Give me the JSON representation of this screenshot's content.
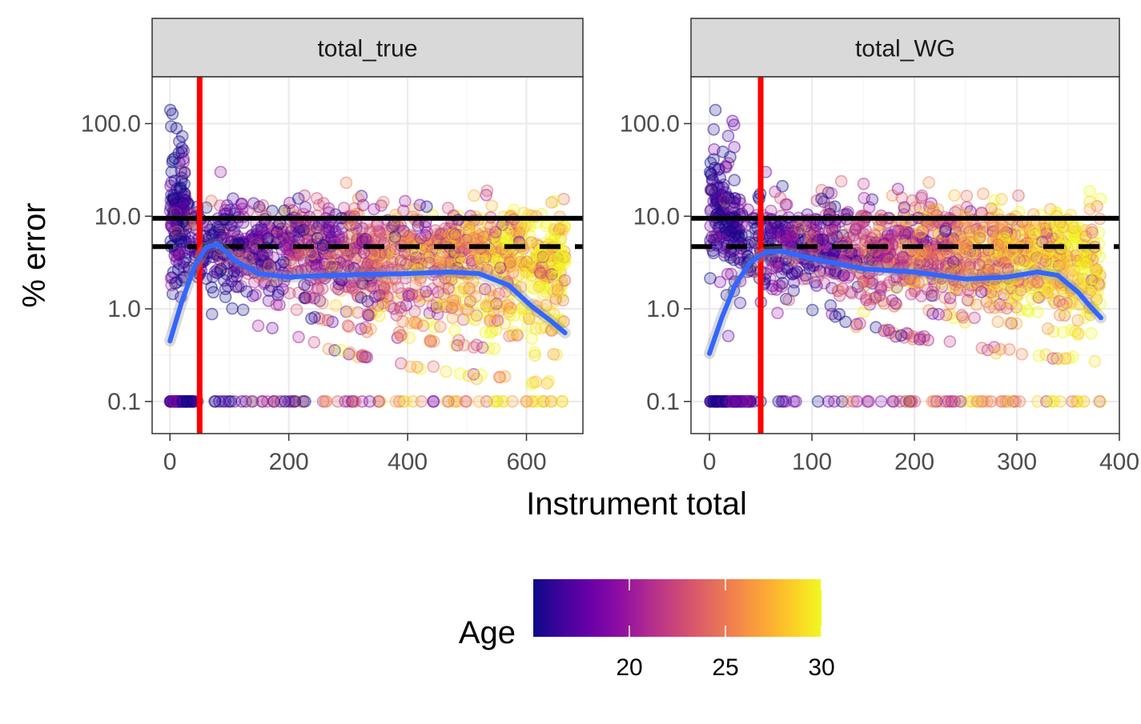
{
  "chart_data": {
    "type": "scatter",
    "x_axis_title": "Instrument total",
    "y_axis_title": "% error",
    "y_scale": "log10",
    "y_ticks": [
      0.1,
      1.0,
      10.0,
      100.0
    ],
    "y_tick_labels": [
      "0.1",
      "1.0",
      "10.0",
      "100.0"
    ],
    "ylim": [
      0.045,
      320
    ],
    "hlines": [
      {
        "y": 9.5,
        "style": "solid",
        "color": "#000000"
      },
      {
        "y": 4.7,
        "style": "dashed",
        "color": "#000000"
      }
    ],
    "vline": {
      "x": 50,
      "color": "#ff0000"
    },
    "smooth_color": "#3366ff",
    "grid": true,
    "legend": {
      "title": "Age",
      "placement": "bottom",
      "range": [
        15,
        30
      ],
      "ticks": [
        20,
        25,
        30
      ],
      "tick_labels": [
        "20",
        "25",
        "30"
      ],
      "palette": "plasma"
    },
    "panels": [
      {
        "strip": "total_true",
        "xlim": [
          -30,
          695
        ],
        "x_ticks": [
          0,
          200,
          400,
          600
        ],
        "x_tick_labels": [
          "0",
          "200",
          "400",
          "600"
        ],
        "x_max": 665,
        "smooth": [
          [
            0,
            0.45
          ],
          [
            20,
            1.2
          ],
          [
            40,
            2.7
          ],
          [
            60,
            4.6
          ],
          [
            80,
            5.0
          ],
          [
            110,
            3.3
          ],
          [
            150,
            2.4
          ],
          [
            200,
            2.2
          ],
          [
            260,
            2.3
          ],
          [
            330,
            2.35
          ],
          [
            400,
            2.4
          ],
          [
            470,
            2.5
          ],
          [
            520,
            2.4
          ],
          [
            570,
            1.8
          ],
          [
            610,
            1.05
          ],
          [
            640,
            0.75
          ],
          [
            665,
            0.55
          ]
        ]
      },
      {
        "strip": "total_WG",
        "xlim": [
          -18,
          400
        ],
        "x_ticks": [
          0,
          100,
          200,
          300,
          400
        ],
        "x_tick_labels": [
          "0",
          "100",
          "200",
          "300",
          "400"
        ],
        "x_max": 382,
        "smooth": [
          [
            0,
            0.33
          ],
          [
            12,
            0.8
          ],
          [
            25,
            1.8
          ],
          [
            40,
            3.2
          ],
          [
            55,
            4.1
          ],
          [
            70,
            4.2
          ],
          [
            100,
            3.5
          ],
          [
            150,
            2.7
          ],
          [
            200,
            2.5
          ],
          [
            250,
            2.1
          ],
          [
            290,
            2.2
          ],
          [
            320,
            2.5
          ],
          [
            340,
            2.3
          ],
          [
            360,
            1.5
          ],
          [
            372,
            1.05
          ],
          [
            382,
            0.8
          ]
        ]
      }
    ]
  }
}
